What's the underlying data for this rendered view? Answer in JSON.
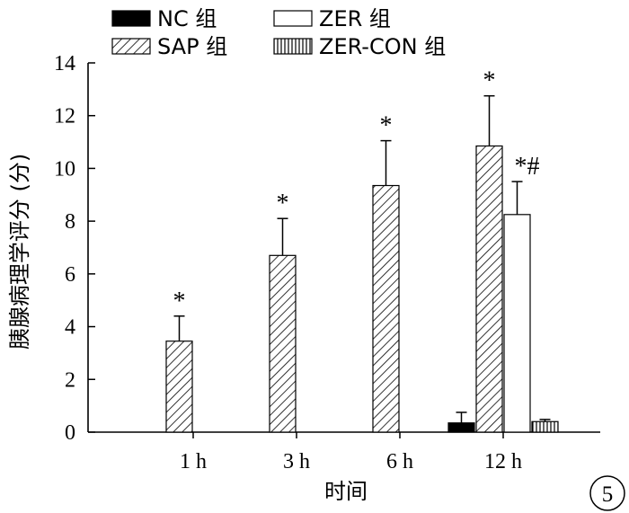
{
  "chart_data": {
    "type": "bar",
    "title": "",
    "xlabel": "时间",
    "ylabel": "胰腺病理学评分 (分)",
    "categories": [
      "1 h",
      "3 h",
      "6 h",
      "12 h"
    ],
    "ylim": [
      0,
      14
    ],
    "yticks": [
      "0",
      "2",
      "4",
      "6",
      "8",
      "10",
      "12",
      "14"
    ],
    "grid": false,
    "legend_position": "top",
    "series": [
      {
        "name": "NC 组",
        "pattern": "solid",
        "values": [
          null,
          null,
          null,
          0.35
        ],
        "errors": [
          null,
          null,
          null,
          0.4
        ]
      },
      {
        "name": "SAP 组",
        "pattern": "diagonal",
        "values": [
          3.45,
          6.7,
          9.35,
          10.85
        ],
        "errors": [
          0.95,
          1.4,
          1.7,
          1.9
        ]
      },
      {
        "name": "ZER 组",
        "pattern": "open",
        "values": [
          null,
          null,
          null,
          8.25
        ],
        "errors": [
          null,
          null,
          null,
          1.25
        ]
      },
      {
        "name": "ZER-CON 组",
        "pattern": "vertical",
        "values": [
          null,
          null,
          null,
          0.4
        ],
        "errors": [
          null,
          null,
          null,
          0.08
        ]
      }
    ],
    "annotations": [
      {
        "series": 1,
        "category": 0,
        "text": "*"
      },
      {
        "series": 1,
        "category": 1,
        "text": "*"
      },
      {
        "series": 1,
        "category": 2,
        "text": "*"
      },
      {
        "series": 1,
        "category": 3,
        "text": "*"
      },
      {
        "series": 2,
        "category": 3,
        "text": "*#"
      }
    ],
    "panel_label": "5"
  }
}
